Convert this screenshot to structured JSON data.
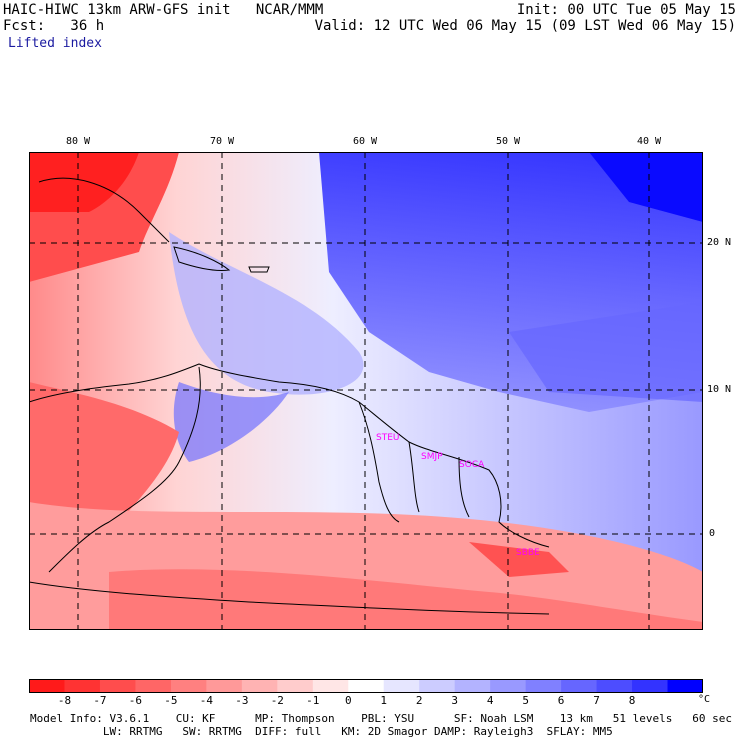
{
  "header": {
    "line1_left": "HAIC-HIWC 13km ARW-GFS init   NCAR/MMM",
    "line1_right": "Init: 00 UTC Tue 05 May 15",
    "line2_left": "Fcst:   36 h",
    "line2_right": "Valid: 12 UTC Wed 06 May 15 (09 LST Wed 06 May 15)",
    "field": "Lifted index"
  },
  "longitude_labels": [
    "80 W",
    "70 W",
    "60 W",
    "50 W",
    "40 W"
  ],
  "latitude_labels": [
    "20 N",
    "10 N",
    "0"
  ],
  "stations": [
    "STEU",
    "SMJP",
    "SOCA",
    "SBBE"
  ],
  "colorbar": {
    "labels": [
      "-8",
      "-7",
      "-6",
      "-5",
      "-4",
      "-3",
      "-2",
      "-1",
      "0",
      "1",
      "2",
      "3",
      "4",
      "5",
      "6",
      "7",
      "8"
    ],
    "unit": "°C",
    "colors": [
      "#ff1a1a",
      "#ff3333",
      "#ff4d4d",
      "#ff6666",
      "#ff8080",
      "#ff9999",
      "#ffb3b3",
      "#ffcccc",
      "#ffe6e6",
      "#ffffff",
      "#e6e6ff",
      "#ccccff",
      "#b3b3ff",
      "#9999ff",
      "#8080ff",
      "#6666ff",
      "#4d4dff",
      "#3333ff",
      "#0000ff"
    ]
  },
  "footer": {
    "line1": "Model Info: V3.6.1    CU: KF      MP: Thompson    PBL: YSU      SF: Noah LSM    13 km   51 levels   60 sec",
    "line2": "           LW: RRTMG   SW: RRTMG  DIFF: full   KM: 2D Smagor DAMP: Rayleigh3  SFLAY: MM5"
  }
}
